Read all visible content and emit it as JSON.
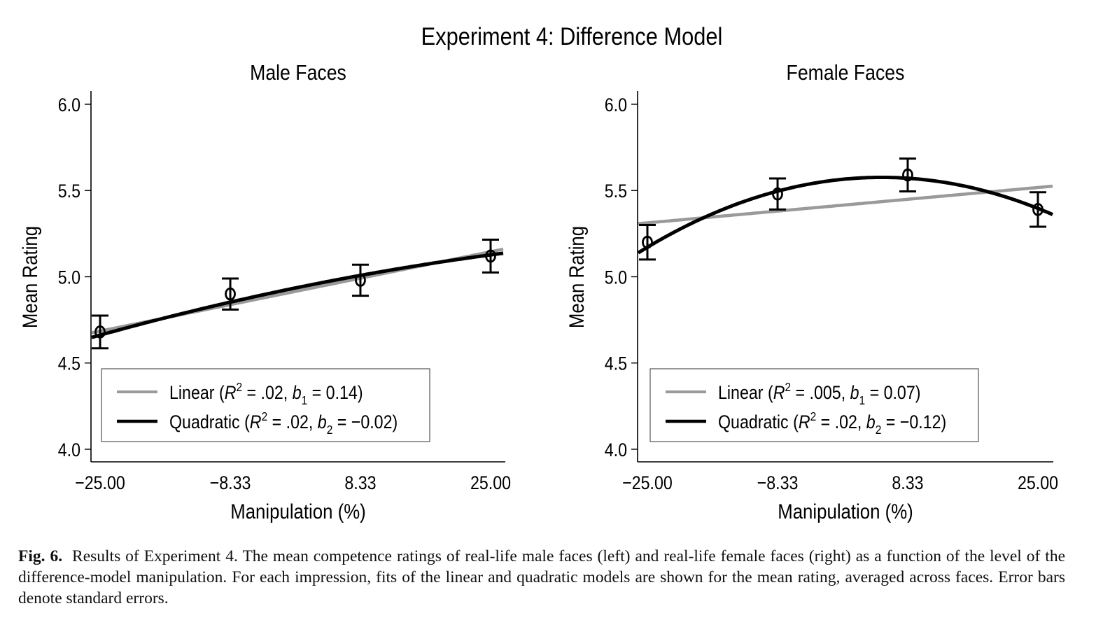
{
  "figure": {
    "main_title": "Experiment 4: Difference Model",
    "caption_label": "Fig. 6.",
    "caption_text": "Results of Experiment 4. The mean competence ratings of real-life male faces (left) and real-life female faces (right) as a function of the level of the difference-model manipulation. For each impression, fits of the linear and quadratic models are shown for the mean rating, averaged across faces. Error bars denote standard errors."
  },
  "colors": {
    "linear": "#9a9a9a",
    "quadratic": "#000000",
    "axis": "#000000",
    "legend_border": "#555555"
  },
  "chart_data": [
    {
      "type": "line",
      "title": "Male Faces",
      "xlabel": "Manipulation (%)",
      "ylabel": "Mean Rating",
      "x": [
        -25.0,
        -8.33,
        8.33,
        25.0
      ],
      "xtick_labels": [
        "−25.00",
        "−8.33",
        "8.33",
        "25.00"
      ],
      "ylim": [
        4.0,
        6.0
      ],
      "yticks": [
        4.0,
        4.5,
        5.0,
        5.5,
        6.0
      ],
      "ytick_labels": [
        "4.0",
        "4.5",
        "5.0",
        "5.5",
        "6.0"
      ],
      "grid": false,
      "legend_position": "bottom-left",
      "points": {
        "name": "Mean rating",
        "values": [
          4.68,
          4.9,
          4.98,
          5.12
        ],
        "errors": [
          0.095,
          0.09,
          0.09,
          0.095
        ]
      },
      "series": [
        {
          "name": "Linear",
          "legend": {
            "prefix": "Linear (",
            "r2": ".02",
            "coef_name": "b",
            "coef_sub": "1",
            "coef_value": "0.14"
          },
          "fit": {
            "a": 4.915,
            "b": 0.0092,
            "c": 0.0
          }
        },
        {
          "name": "Quadratic",
          "legend": {
            "prefix": "Quadratic (",
            "r2": ".02",
            "coef_name": "b",
            "coef_sub": "2",
            "coef_value": "−0.02"
          },
          "fit": {
            "a": 4.935,
            "b": 0.0093,
            "c": -6.5e-05
          }
        }
      ]
    },
    {
      "type": "line",
      "title": "Female Faces",
      "xlabel": "Manipulation (%)",
      "ylabel": "Mean Rating",
      "x": [
        -25.0,
        -8.33,
        8.33,
        25.0
      ],
      "xtick_labels": [
        "−25.00",
        "−8.33",
        "8.33",
        "25.00"
      ],
      "ylim": [
        4.0,
        6.0
      ],
      "yticks": [
        4.0,
        4.5,
        5.0,
        5.5,
        6.0
      ],
      "ytick_labels": [
        "4.0",
        "4.5",
        "5.0",
        "5.5",
        "6.0"
      ],
      "grid": false,
      "legend_position": "bottom-left",
      "points": {
        "name": "Mean rating",
        "values": [
          5.2,
          5.48,
          5.59,
          5.39
        ],
        "errors": [
          0.1,
          0.09,
          0.095,
          0.1
        ]
      },
      "series": [
        {
          "name": "Linear",
          "legend": {
            "prefix": "Linear (",
            "r2": ".005",
            "coef_name": "b",
            "coef_sub": "1",
            "coef_value": "0.07"
          },
          "fit": {
            "a": 5.415,
            "b": 0.0041,
            "c": 0.0
          }
        },
        {
          "name": "Quadratic",
          "legend": {
            "prefix": "Quadratic (",
            "r2": ".02",
            "coef_name": "b",
            "coef_sub": "2",
            "coef_value": "−0.12"
          },
          "fit": {
            "a": 5.565,
            "b": 0.0045,
            "c": -0.00045
          }
        }
      ]
    }
  ]
}
